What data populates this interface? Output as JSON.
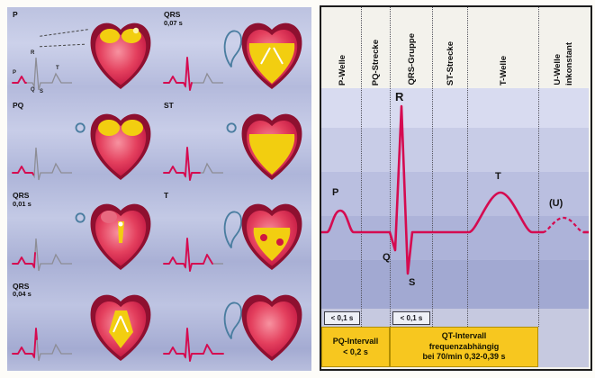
{
  "colors": {
    "ecg_red": "#d50b50",
    "interval_yellow": "#f7c71f",
    "heart_dark": "#8e1030",
    "activation_yellow": "#f2ce10",
    "loop_blue": "#4a7da0"
  },
  "left": {
    "panels": [
      {
        "label": "P",
        "sublabel": ""
      },
      {
        "label": "QRS",
        "sublabel": "0,07 s"
      },
      {
        "label": "PQ",
        "sublabel": ""
      },
      {
        "label": "ST",
        "sublabel": ""
      },
      {
        "label": "QRS",
        "sublabel": "0,01 s"
      },
      {
        "label": "T",
        "sublabel": ""
      },
      {
        "label": "QRS",
        "sublabel": "0,04 s"
      },
      {
        "label": "",
        "sublabel": ""
      }
    ],
    "first_panel_letters": {
      "r": "R",
      "p": "P",
      "q": "Q",
      "s": "S",
      "t": "T"
    }
  },
  "right": {
    "columns": [
      {
        "label": "P-Welle",
        "sublabel": ""
      },
      {
        "label": "PQ-Strecke",
        "sublabel": ""
      },
      {
        "label": "QRS-Gruppe",
        "sublabel": ""
      },
      {
        "label": "ST-Strecke",
        "sublabel": ""
      },
      {
        "label": "T-Welle",
        "sublabel": ""
      },
      {
        "label": "U-Welle",
        "sublabel": "inkonstant"
      }
    ],
    "waves": {
      "p": "P",
      "q": "Q",
      "r": "R",
      "s": "S",
      "t": "T",
      "u": "(U)"
    },
    "timing": {
      "p": "< 0,1 s",
      "qrs": "< 0,1 s"
    },
    "intervals": {
      "pq_line1": "PQ-Intervall",
      "pq_line2": "< 0,2 s",
      "qt_line1": "QT-Intervall",
      "qt_line2": "frequenzabhängig",
      "qt_line3": "bei 70/min 0,32-0,39 s"
    }
  }
}
